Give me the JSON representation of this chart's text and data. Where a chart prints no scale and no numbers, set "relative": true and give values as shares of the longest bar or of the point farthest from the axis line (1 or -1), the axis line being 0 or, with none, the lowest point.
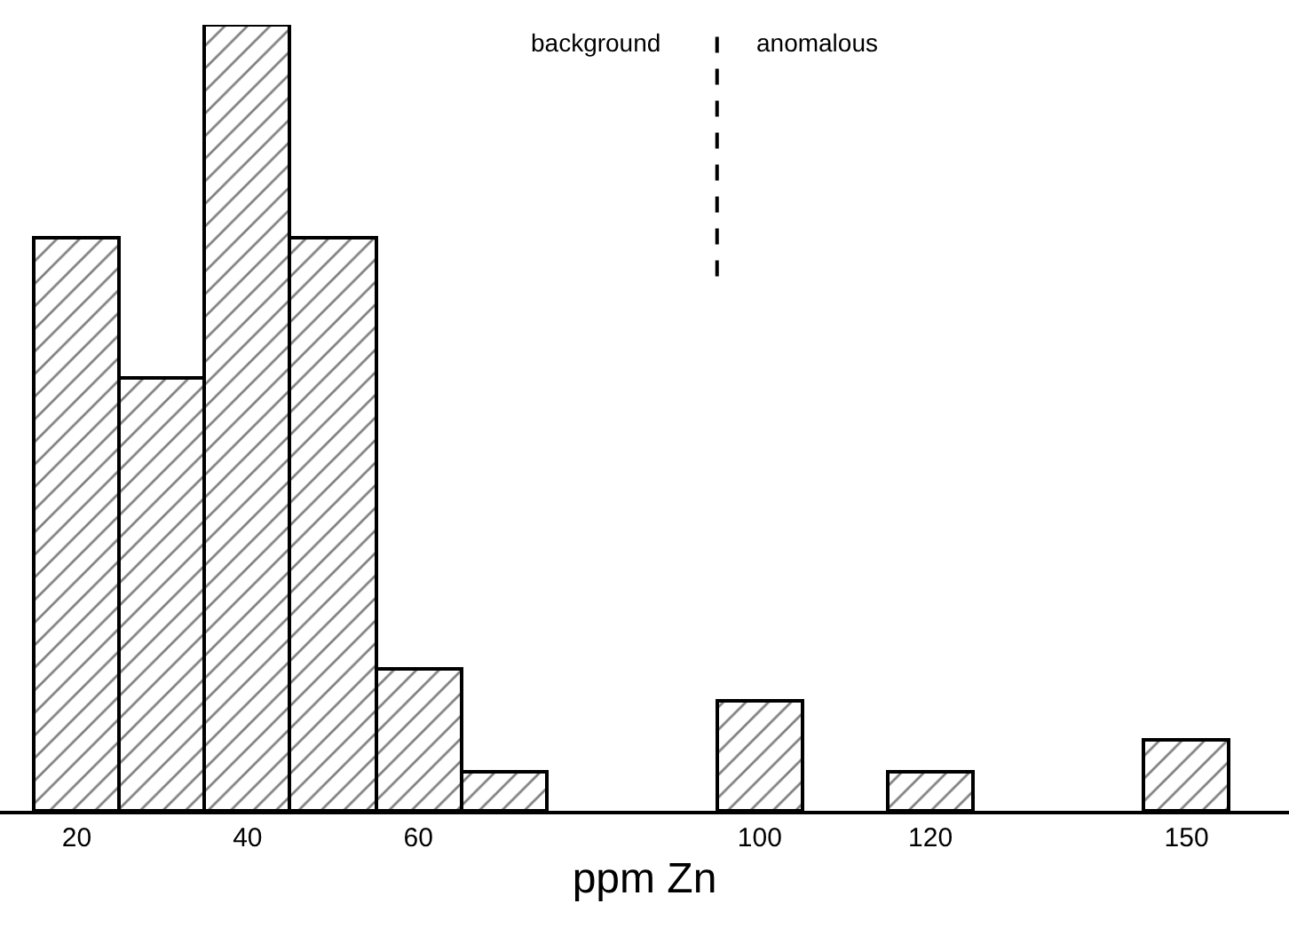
{
  "chart_data": {
    "type": "bar",
    "relative": true,
    "xlabel": "ppm Zn",
    "x": [
      20,
      30,
      40,
      50,
      60,
      70,
      80,
      90,
      100,
      110,
      120,
      130,
      140,
      150
    ],
    "values": [
      0.73,
      0.55,
      1,
      0.73,
      0.18,
      0.05,
      null,
      null,
      0.14,
      null,
      0.05,
      null,
      null,
      0.09
    ],
    "color": "#000000",
    "xlim": [
      11,
      162
    ],
    "xticks": [
      20,
      40,
      60,
      100,
      120,
      150
    ],
    "ref_lines": [
      {
        "axis": "x",
        "value": 95,
        "line_style": "dashed",
        "color": "#000000"
      }
    ],
    "annotations": [
      "background",
      "anomalous"
    ],
    "legend": false
  }
}
